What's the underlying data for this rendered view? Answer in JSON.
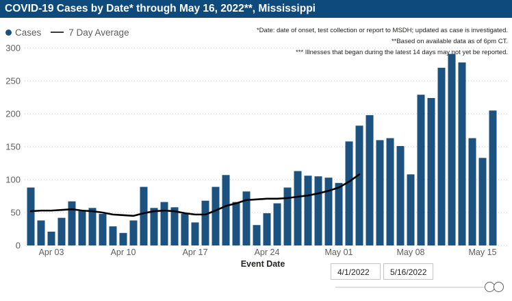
{
  "title": "COVID-19 Cases by Date* through May 16, 2022**, Mississippi",
  "legend": {
    "cases_label": "Cases",
    "avg_label": "7 Day Average"
  },
  "footnotes": [
    "*Date: date of onset, test collection or report to MSDH; updated as case is investigated.",
    "**Based on available data as of 6pm CT.",
    "*** Illnesses that began during the latest 14 days may not yet be reported."
  ],
  "colors": {
    "title_bg": "#0F4A7C",
    "bar": "#1B5280",
    "avg_line": "#000000",
    "axis_text": "#605E5C",
    "grid": "#C9C7C5"
  },
  "filters": {
    "start_date": "4/1/2022",
    "end_date": "5/16/2022"
  },
  "chart_data": {
    "type": "bar",
    "title": "COVID-19 Cases by Date through May 16, 2022, Mississippi",
    "xlabel": "Event Date",
    "ylabel": "",
    "ylim": [
      0,
      300
    ],
    "y_ticks": [
      0,
      50,
      100,
      150,
      200,
      250,
      300
    ],
    "x_ticks": [
      "Apr 03",
      "Apr 10",
      "Apr 17",
      "Apr 24",
      "May 01",
      "May 08",
      "May 15"
    ],
    "grid": "dotted horizontal",
    "legend_position": "top-left",
    "dates": [
      "Apr 01",
      "Apr 02",
      "Apr 03",
      "Apr 04",
      "Apr 05",
      "Apr 06",
      "Apr 07",
      "Apr 08",
      "Apr 09",
      "Apr 10",
      "Apr 11",
      "Apr 12",
      "Apr 13",
      "Apr 14",
      "Apr 15",
      "Apr 16",
      "Apr 17",
      "Apr 18",
      "Apr 19",
      "Apr 20",
      "Apr 21",
      "Apr 22",
      "Apr 23",
      "Apr 24",
      "Apr 25",
      "Apr 26",
      "Apr 27",
      "Apr 28",
      "Apr 29",
      "Apr 30",
      "May 01",
      "May 02",
      "May 03",
      "May 04",
      "May 05",
      "May 06",
      "May 07",
      "May 08",
      "May 09",
      "May 10",
      "May 11",
      "May 12",
      "May 13",
      "May 14",
      "May 15",
      "May 16"
    ],
    "series": [
      {
        "name": "Cases",
        "type": "bar",
        "values": [
          88,
          38,
          21,
          42,
          67,
          52,
          57,
          48,
          29,
          19,
          38,
          89,
          57,
          66,
          58,
          48,
          35,
          68,
          89,
          107,
          66,
          82,
          31,
          49,
          64,
          88,
          113,
          106,
          105,
          103,
          95,
          158,
          182,
          198,
          160,
          163,
          151,
          108,
          229,
          224,
          270,
          291,
          278,
          163,
          133,
          205
        ]
      },
      {
        "name": "7 Day Average",
        "type": "line",
        "values": [
          52,
          53,
          53,
          54,
          55,
          53,
          52,
          50,
          47,
          46,
          45,
          49,
          52,
          53,
          52,
          49,
          47,
          47,
          53,
          60,
          64,
          69,
          70,
          71,
          71,
          72,
          74,
          76,
          79,
          83,
          88,
          97,
          108,
          null,
          null,
          null,
          null,
          null,
          null,
          null,
          null,
          null,
          null,
          null,
          null,
          null
        ]
      }
    ]
  }
}
